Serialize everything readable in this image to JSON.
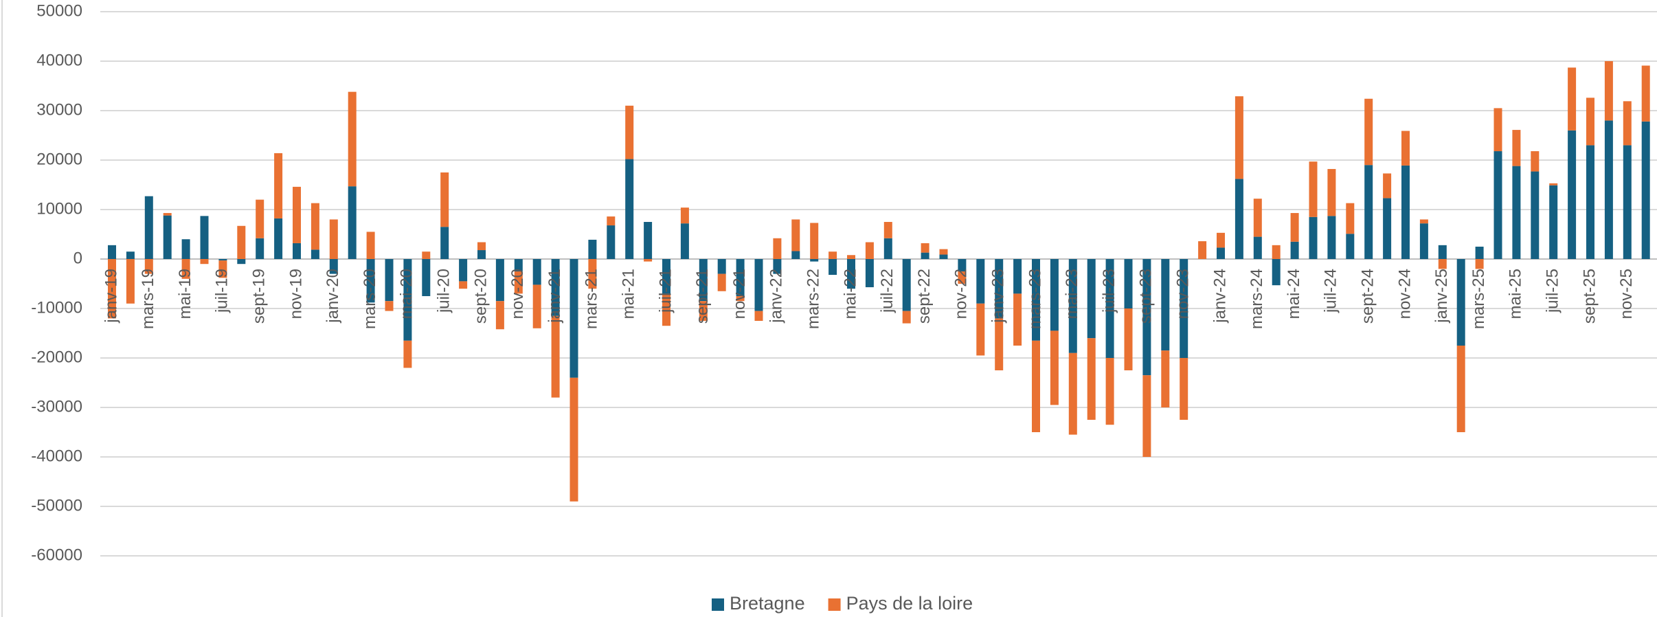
{
  "chart_data": {
    "type": "bar",
    "stacked": true,
    "categories": [
      "janv-19",
      null,
      "mars-19",
      null,
      "mai-19",
      null,
      "juil-19",
      null,
      "sept-19",
      null,
      "nov-19",
      null,
      "janv-20",
      null,
      "mars-20",
      null,
      "mai-20",
      null,
      "juil-20",
      null,
      "sept-20",
      null,
      "nov-20",
      null,
      "janv-21",
      null,
      "mars-21",
      null,
      "mai-21",
      null,
      "juil-21",
      null,
      "sept-21",
      null,
      "nov-21",
      null,
      "janv-22",
      null,
      "mars-22",
      null,
      "mai-22",
      null,
      "juil-22",
      null,
      "sept-22",
      null,
      "nov-22",
      null,
      "janv-23",
      null,
      "mars-23",
      null,
      "mai-23",
      null,
      "juil-23",
      null,
      "sept-23",
      null,
      "nov-23",
      null,
      "janv-24",
      null,
      "mars-24",
      null,
      "mai-24",
      null,
      "juil-24",
      null,
      "sept-24",
      null,
      "nov-24",
      null,
      "janv-25",
      null,
      "mars-25",
      null,
      "mai-25",
      null,
      "juil-25",
      null,
      "sept-25",
      null,
      "nov-25",
      null
    ],
    "series": [
      {
        "name": "Bretagne",
        "color": "#156082",
        "values": [
          2800,
          1500,
          12700,
          8800,
          4000,
          8700,
          -300,
          -1000,
          4200,
          8200,
          3200,
          1900,
          -3000,
          14700,
          -8800,
          -8500,
          -16500,
          -7500,
          6500,
          -4500,
          1800,
          -8500,
          -2500,
          -5200,
          -11500,
          -24000,
          3900,
          6800,
          20200,
          7500,
          -7000,
          7200,
          -8500,
          -3000,
          -7500,
          -10500,
          -3000,
          1600,
          -500,
          -3200,
          -6000,
          -5700,
          4200,
          -10500,
          1300,
          900,
          -2500,
          -9000,
          -12000,
          -7000,
          -16500,
          -14500,
          -19000,
          -16000,
          -20000,
          -10000,
          -23500,
          -18500,
          -20000,
          0,
          2300,
          16200,
          4500,
          -5300,
          3500,
          8500,
          8700,
          5100,
          19000,
          12300,
          18900,
          7200,
          2800,
          -17500,
          2500,
          21800,
          18800,
          17700,
          14900,
          26000,
          23000,
          28000,
          23000,
          27800
        ]
      },
      {
        "name": "Pays de la loire",
        "color": "#e97132",
        "values": [
          -12000,
          -9000,
          -3000,
          500,
          -4000,
          -1000,
          -3500,
          6700,
          7800,
          13200,
          11400,
          9400,
          8000,
          19100,
          5500,
          -2000,
          -5500,
          1500,
          11000,
          -1500,
          1600,
          -5700,
          -4500,
          -8800,
          -16500,
          -25000,
          -6000,
          1800,
          10800,
          -500,
          -6500,
          3200,
          -4000,
          -3500,
          -1000,
          -2000,
          4200,
          6400,
          7300,
          1500,
          800,
          3400,
          3300,
          -2500,
          1900,
          1100,
          -2500,
          -10500,
          -10500,
          -10500,
          -18500,
          -15000,
          -16500,
          -16500,
          -13500,
          -12500,
          -16500,
          -11500,
          -12500,
          3600,
          3000,
          16700,
          7700,
          2800,
          5800,
          11200,
          9500,
          6200,
          13400,
          5000,
          7000,
          800,
          -2000,
          -17500,
          -2000,
          8700,
          7300,
          4100,
          400,
          12700,
          9600,
          12000,
          8900,
          11300
        ]
      }
    ],
    "ylim": [
      -60000,
      50000
    ],
    "yticks": [
      -60000,
      -50000,
      -40000,
      -30000,
      -20000,
      -10000,
      0,
      10000,
      20000,
      30000,
      40000,
      50000
    ],
    "grid": true,
    "legend": "bottom"
  }
}
